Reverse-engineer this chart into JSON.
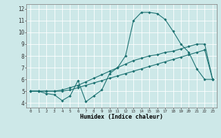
{
  "xlabel": "Humidex (Indice chaleur)",
  "ylabel": "",
  "bg_color": "#cde8e8",
  "line_color": "#1a7070",
  "grid_color": "#ffffff",
  "xlim": [
    -0.5,
    23.5
  ],
  "ylim": [
    3.6,
    12.4
  ],
  "xticks": [
    0,
    1,
    2,
    3,
    4,
    5,
    6,
    7,
    8,
    9,
    10,
    11,
    12,
    13,
    14,
    15,
    16,
    17,
    18,
    19,
    20,
    21,
    22,
    23
  ],
  "yticks": [
    4,
    5,
    6,
    7,
    8,
    9,
    10,
    11,
    12
  ],
  "series": [
    [
      5.0,
      5.0,
      4.8,
      4.7,
      4.2,
      4.6,
      5.9,
      4.1,
      4.6,
      5.1,
      6.5,
      7.0,
      8.0,
      11.0,
      11.7,
      11.7,
      11.6,
      11.1,
      10.1,
      9.0,
      8.3,
      6.9,
      6.0,
      6.0
    ],
    [
      5.0,
      5.0,
      5.0,
      5.0,
      5.1,
      5.3,
      5.5,
      5.8,
      6.1,
      6.4,
      6.7,
      7.0,
      7.3,
      7.6,
      7.8,
      8.0,
      8.1,
      8.3,
      8.4,
      8.6,
      8.8,
      9.0,
      9.0,
      6.0
    ],
    [
      5.0,
      5.0,
      5.0,
      5.0,
      5.0,
      5.1,
      5.3,
      5.5,
      5.7,
      5.9,
      6.1,
      6.3,
      6.5,
      6.7,
      6.9,
      7.1,
      7.3,
      7.5,
      7.7,
      7.9,
      8.1,
      8.3,
      8.5,
      6.0
    ]
  ]
}
